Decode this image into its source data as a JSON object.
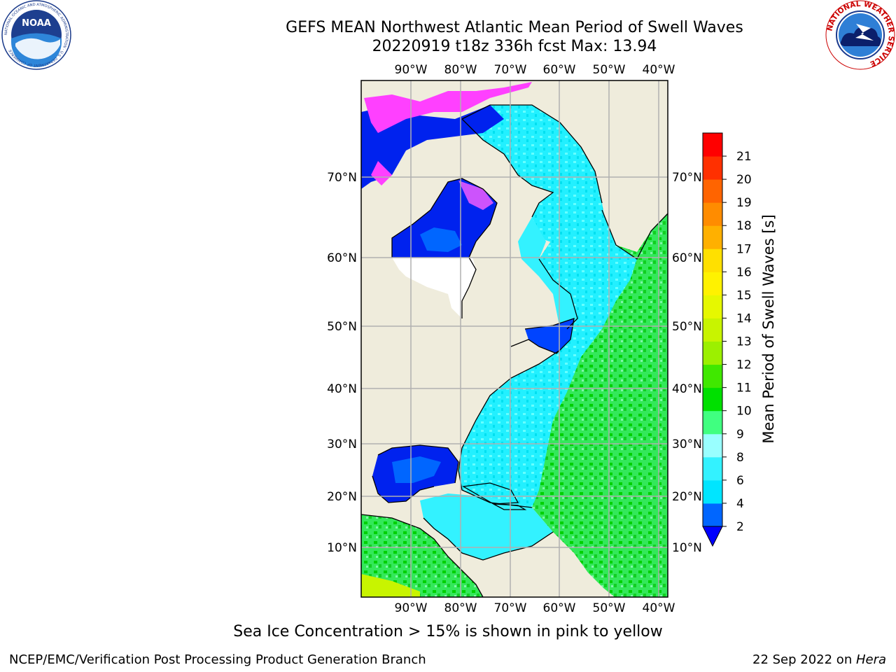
{
  "header": {
    "title_line1": "GEFS MEAN Northwest Atlantic Mean Period of Swell Waves",
    "title_line2": "20220919 t18z 336h fcst   Max: 13.94"
  },
  "logos": {
    "left": {
      "name": "noaa-logo",
      "text": "NOAA",
      "ring_text": "NATIONAL OCEANIC AND ATMOSPHERIC ADMINISTRATION · U.S. DEPARTMENT OF COMMERCE"
    },
    "right": {
      "name": "nws-logo",
      "ring_text": "NATIONAL WEATHER SERVICE"
    }
  },
  "map": {
    "lon_labels": [
      "90°W",
      "80°W",
      "70°W",
      "60°W",
      "50°W",
      "40°W"
    ],
    "lat_labels_left": [
      "70°N",
      "60°N",
      "50°N",
      "40°N",
      "30°N",
      "20°N",
      "10°N"
    ],
    "lat_labels_right": [
      "70°N",
      "60°N",
      "50°N",
      "40°N",
      "30°N",
      "20°N",
      "10°N"
    ],
    "land_color": "#efecdc",
    "grid_color": "#b0b0b0"
  },
  "colorbar": {
    "title": "Mean Period of Swell Waves [s]",
    "ticks": [
      "2",
      "4",
      "6",
      "8",
      "9",
      "10",
      "11",
      "12",
      "13",
      "14",
      "15",
      "16",
      "17",
      "18",
      "19",
      "20",
      "21"
    ],
    "colors": [
      "#0066ff",
      "#00e5ff",
      "#33f2ff",
      "#99ffff",
      "#40ff80",
      "#00e000",
      "#40e800",
      "#9cf000",
      "#c8f400",
      "#e6f800",
      "#fff200",
      "#ffe000",
      "#ffb000",
      "#ff8c00",
      "#ff6400",
      "#ff3000",
      "#ff0000"
    ],
    "extend_color": "#0000ff"
  },
  "footer": {
    "note": "Sea Ice Concentration > 15% is shown in pink to yellow",
    "left": "NCEP/EMC/Verification Post Processing Product Generation Branch",
    "right_date": "22 Sep 2022 on ",
    "right_host": "Hera"
  }
}
